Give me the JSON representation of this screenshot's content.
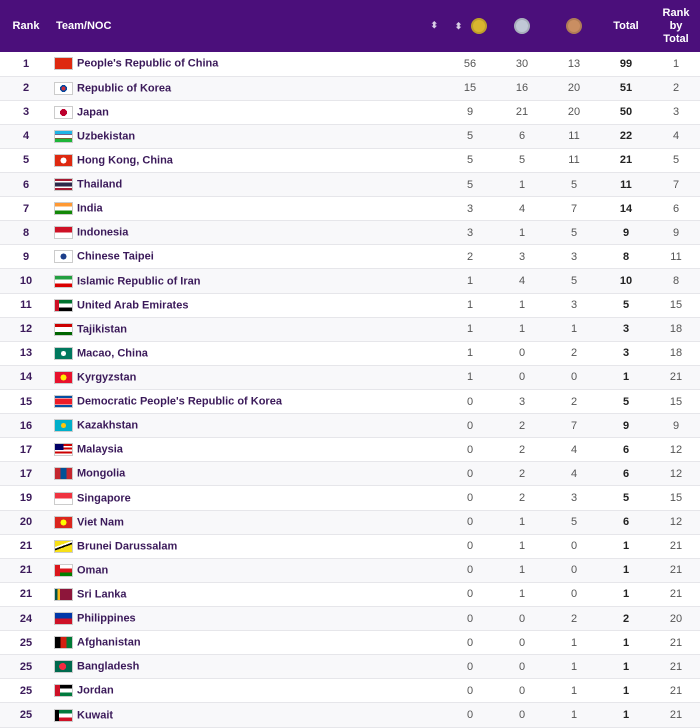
{
  "header": {
    "rank": "Rank",
    "team": "Team/NOC",
    "sort_glyph": "⬍",
    "total": "Total",
    "rank_by_total": [
      "Rank",
      "by",
      "Total"
    ],
    "medal_icons": [
      "gold-medal-icon",
      "silver-medal-icon",
      "bronze-medal-icon"
    ]
  },
  "colors": {
    "header_bg": "#4b0f7b",
    "gold": "#d9b52f",
    "silver": "#c0c8d6",
    "bronze": "#c98e62"
  },
  "rows": [
    {
      "rank": "1",
      "team": "People's Republic of China",
      "flag": "china",
      "gold": "56",
      "silver": "30",
      "bronze": "13",
      "total": "99",
      "rbt": "1"
    },
    {
      "rank": "2",
      "team": "Republic of Korea",
      "flag": "korea",
      "gold": "15",
      "silver": "16",
      "bronze": "20",
      "total": "51",
      "rbt": "2"
    },
    {
      "rank": "3",
      "team": "Japan",
      "flag": "japan",
      "gold": "9",
      "silver": "21",
      "bronze": "20",
      "total": "50",
      "rbt": "3"
    },
    {
      "rank": "4",
      "team": "Uzbekistan",
      "flag": "uzbekistan",
      "gold": "5",
      "silver": "6",
      "bronze": "11",
      "total": "22",
      "rbt": "4"
    },
    {
      "rank": "5",
      "team": "Hong Kong, China",
      "flag": "hong-kong",
      "gold": "5",
      "silver": "5",
      "bronze": "11",
      "total": "21",
      "rbt": "5"
    },
    {
      "rank": "6",
      "team": "Thailand",
      "flag": "thailand",
      "gold": "5",
      "silver": "1",
      "bronze": "5",
      "total": "11",
      "rbt": "7"
    },
    {
      "rank": "7",
      "team": "India",
      "flag": "india",
      "gold": "3",
      "silver": "4",
      "bronze": "7",
      "total": "14",
      "rbt": "6"
    },
    {
      "rank": "8",
      "team": "Indonesia",
      "flag": "indonesia",
      "gold": "3",
      "silver": "1",
      "bronze": "5",
      "total": "9",
      "rbt": "9"
    },
    {
      "rank": "9",
      "team": "Chinese Taipei",
      "flag": "chinese-taipei",
      "gold": "2",
      "silver": "3",
      "bronze": "3",
      "total": "8",
      "rbt": "11"
    },
    {
      "rank": "10",
      "team": "Islamic Republic of Iran",
      "flag": "iran",
      "gold": "1",
      "silver": "4",
      "bronze": "5",
      "total": "10",
      "rbt": "8"
    },
    {
      "rank": "11",
      "team": "United Arab Emirates",
      "flag": "uae",
      "gold": "1",
      "silver": "1",
      "bronze": "3",
      "total": "5",
      "rbt": "15"
    },
    {
      "rank": "12",
      "team": "Tajikistan",
      "flag": "tajikistan",
      "gold": "1",
      "silver": "1",
      "bronze": "1",
      "total": "3",
      "rbt": "18"
    },
    {
      "rank": "13",
      "team": "Macao, China",
      "flag": "macao",
      "gold": "1",
      "silver": "0",
      "bronze": "2",
      "total": "3",
      "rbt": "18"
    },
    {
      "rank": "14",
      "team": "Kyrgyzstan",
      "flag": "kyrgyzstan",
      "gold": "1",
      "silver": "0",
      "bronze": "0",
      "total": "1",
      "rbt": "21"
    },
    {
      "rank": "15",
      "team": "Democratic People's Republic of Korea",
      "flag": "dprk",
      "gold": "0",
      "silver": "3",
      "bronze": "2",
      "total": "5",
      "rbt": "15"
    },
    {
      "rank": "16",
      "team": "Kazakhstan",
      "flag": "kazakhstan",
      "gold": "0",
      "silver": "2",
      "bronze": "7",
      "total": "9",
      "rbt": "9"
    },
    {
      "rank": "17",
      "team": "Malaysia",
      "flag": "malaysia",
      "gold": "0",
      "silver": "2",
      "bronze": "4",
      "total": "6",
      "rbt": "12"
    },
    {
      "rank": "17",
      "team": "Mongolia",
      "flag": "mongolia",
      "gold": "0",
      "silver": "2",
      "bronze": "4",
      "total": "6",
      "rbt": "12"
    },
    {
      "rank": "19",
      "team": "Singapore",
      "flag": "singapore",
      "gold": "0",
      "silver": "2",
      "bronze": "3",
      "total": "5",
      "rbt": "15"
    },
    {
      "rank": "20",
      "team": "Viet Nam",
      "flag": "vietnam",
      "gold": "0",
      "silver": "1",
      "bronze": "5",
      "total": "6",
      "rbt": "12"
    },
    {
      "rank": "21",
      "team": "Brunei Darussalam",
      "flag": "brunei",
      "gold": "0",
      "silver": "1",
      "bronze": "0",
      "total": "1",
      "rbt": "21"
    },
    {
      "rank": "21",
      "team": "Oman",
      "flag": "oman",
      "gold": "0",
      "silver": "1",
      "bronze": "0",
      "total": "1",
      "rbt": "21"
    },
    {
      "rank": "21",
      "team": "Sri Lanka",
      "flag": "sri-lanka",
      "gold": "0",
      "silver": "1",
      "bronze": "0",
      "total": "1",
      "rbt": "21"
    },
    {
      "rank": "24",
      "team": "Philippines",
      "flag": "philippines",
      "gold": "0",
      "silver": "0",
      "bronze": "2",
      "total": "2",
      "rbt": "20"
    },
    {
      "rank": "25",
      "team": "Afghanistan",
      "flag": "afghanistan",
      "gold": "0",
      "silver": "0",
      "bronze": "1",
      "total": "1",
      "rbt": "21"
    },
    {
      "rank": "25",
      "team": "Bangladesh",
      "flag": "bangladesh",
      "gold": "0",
      "silver": "0",
      "bronze": "1",
      "total": "1",
      "rbt": "21"
    },
    {
      "rank": "25",
      "team": "Jordan",
      "flag": "jordan",
      "gold": "0",
      "silver": "0",
      "bronze": "1",
      "total": "1",
      "rbt": "21"
    },
    {
      "rank": "25",
      "team": "Kuwait",
      "flag": "kuwait",
      "gold": "0",
      "silver": "0",
      "bronze": "1",
      "total": "1",
      "rbt": "21"
    }
  ]
}
